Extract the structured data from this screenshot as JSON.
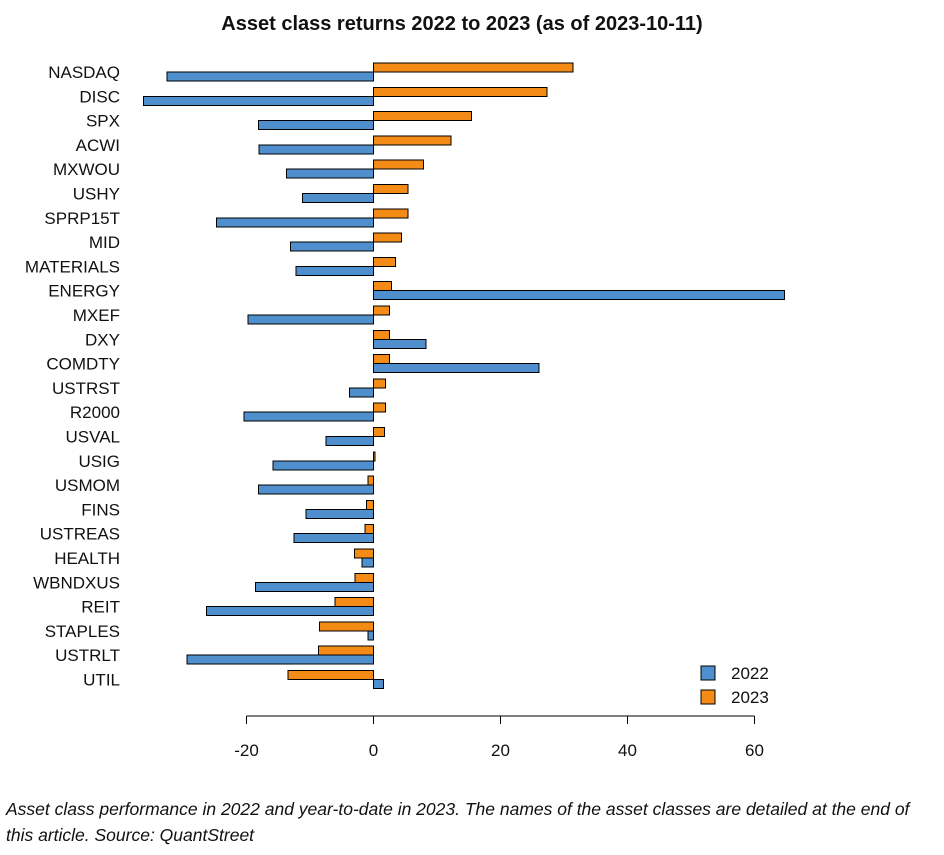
{
  "chart_data": {
    "type": "bar",
    "orientation": "horizontal",
    "title": "Asset class returns 2022 to 2023  (as of 2023-10-11)",
    "xlabel": "",
    "ylabel": "",
    "xlim": [
      -27,
      66
    ],
    "xticks": [
      -20,
      0,
      20,
      40,
      60
    ],
    "grid": false,
    "legend_position": "bottom-right",
    "categories": [
      "NASDAQ",
      "DISC",
      "SPX",
      "ACWI",
      "MXWOU",
      "USHY",
      "SPRP15T",
      "MID",
      "MATERIALS",
      "ENERGY",
      "MXEF",
      "DXY",
      "COMDTY",
      "USTRST",
      "R2000",
      "USVAL",
      "USIG",
      "USMOM",
      "FINS",
      "USTREAS",
      "HEALTH",
      "WBNDXUS",
      "REIT",
      "STAPLES",
      "USTRLT",
      "UTIL"
    ],
    "series": [
      {
        "name": "2022",
        "color": "#4f8fcd",
        "values": [
          -32.5,
          -36.2,
          -18.1,
          -18.0,
          -13.7,
          -11.2,
          -24.7,
          -13.1,
          -12.2,
          64.7,
          -19.8,
          8.3,
          26.1,
          -3.8,
          -20.4,
          -7.5,
          -15.8,
          -18.1,
          -10.6,
          -12.5,
          -1.8,
          -18.6,
          -26.3,
          -0.9,
          -29.4,
          1.6
        ]
      },
      {
        "name": "2023",
        "color": "#f38b16",
        "values": [
          31.4,
          27.3,
          15.4,
          12.2,
          7.9,
          5.4,
          5.4,
          4.4,
          3.5,
          2.8,
          2.5,
          2.5,
          2.5,
          1.9,
          1.9,
          1.7,
          0.2,
          -0.9,
          -1.1,
          -1.3,
          -3.0,
          -2.9,
          -6.1,
          -8.5,
          -8.7,
          -13.5
        ]
      }
    ]
  },
  "caption": "Asset class performance in 2022 and year-to-date in 2023. The names of the asset classes are detailed at the end of this article. Source: QuantStreet"
}
